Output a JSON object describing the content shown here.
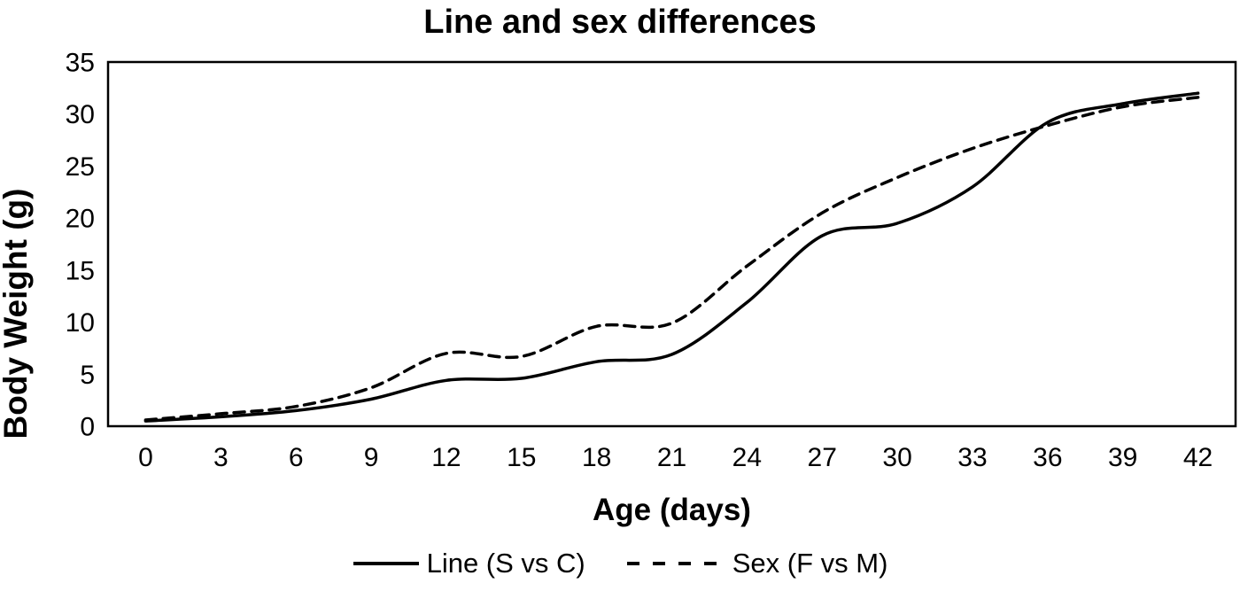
{
  "page": {
    "background_color": "#ffffff",
    "foreground_color": "#000000"
  },
  "chart_data": {
    "type": "line",
    "title": "Line and sex differences",
    "xlabel": "Age (days)",
    "ylabel": "Body Weight (g)",
    "categories": [
      0,
      3,
      6,
      9,
      12,
      15,
      18,
      21,
      24,
      27,
      30,
      33,
      36,
      39,
      42
    ],
    "yticks": [
      0,
      5,
      10,
      15,
      20,
      25,
      30,
      35
    ],
    "ylim": [
      0,
      35
    ],
    "grid": false,
    "plot_border": true,
    "smooth": true,
    "legend_position": "bottom",
    "axis_color": "#000000",
    "series": [
      {
        "name": "Line (S vs C)",
        "style": "solid",
        "color": "#000000",
        "values": [
          0.5,
          0.9,
          1.5,
          2.6,
          4.4,
          4.6,
          6.2,
          6.9,
          11.9,
          18.3,
          19.5,
          23.0,
          29.2,
          31.0,
          32.0
        ]
      },
      {
        "name": "Sex (F vs M)",
        "style": "dashed",
        "color": "#000000",
        "values": [
          0.6,
          1.2,
          1.9,
          3.7,
          7.0,
          6.7,
          9.6,
          9.9,
          15.4,
          20.5,
          23.9,
          26.7,
          28.9,
          30.7,
          31.6
        ]
      }
    ]
  }
}
